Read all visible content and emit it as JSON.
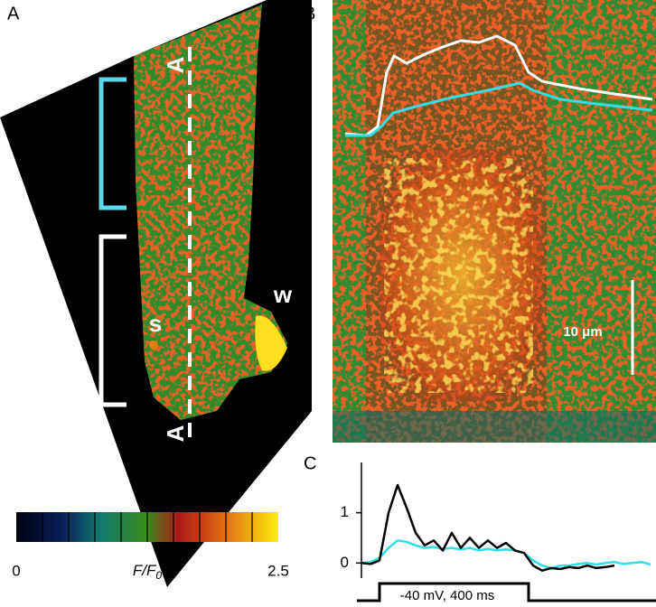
{
  "panels": {
    "a": {
      "label": "A",
      "line_labels": [
        "A",
        "A"
      ],
      "markers": [
        "s",
        "w"
      ]
    },
    "b": {
      "label": "B",
      "scale_bar": "10 μm"
    },
    "c": {
      "label": "C",
      "stimulus": "-40 mV, 400 ms"
    }
  },
  "colorbar": {
    "label": "F/F",
    "label_sub": "0",
    "lim": [
      0,
      2.5
    ],
    "ticks": [
      0,
      2.5
    ]
  },
  "chart_data": {
    "type": "line",
    "ylim": [
      -0.3,
      2.0
    ],
    "yticks": [
      0,
      1
    ],
    "series": [
      {
        "color": "#000000",
        "values": [
          0,
          -0.02,
          0.05,
          1.0,
          1.55,
          1.1,
          0.6,
          0.35,
          0.45,
          0.25,
          0.6,
          0.3,
          0.5,
          0.3,
          0.45,
          0.3,
          0.4,
          0.25,
          0.2,
          -0.05,
          -0.15,
          -0.1,
          -0.12,
          -0.08,
          -0.1,
          -0.05,
          -0.1,
          -0.08,
          -0.05,
          null,
          null,
          null,
          null
        ]
      },
      {
        "color": "#33dde8",
        "values": [
          0,
          0.02,
          0.1,
          0.3,
          0.45,
          0.42,
          0.35,
          0.3,
          0.32,
          0.28,
          0.3,
          0.27,
          0.3,
          0.25,
          0.28,
          0.25,
          0.27,
          0.25,
          0.2,
          0.05,
          -0.05,
          -0.1,
          -0.05,
          -0.05,
          -0.02,
          0,
          -0.03,
          0,
          0.02,
          -0.02,
          0,
          0.02,
          -0.03
        ]
      }
    ]
  }
}
